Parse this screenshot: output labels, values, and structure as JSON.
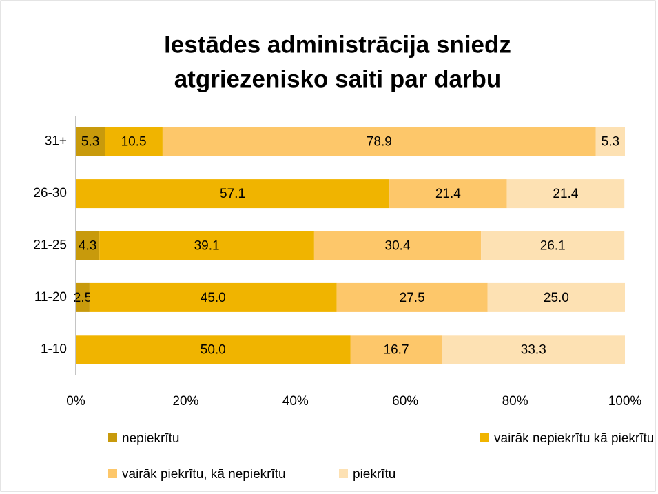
{
  "chart_data": {
    "type": "stacked-bar-horizontal",
    "title": [
      "Iestādes administrācija sniedz",
      "atgriezenisko saiti par darbu"
    ],
    "categories": [
      "31+",
      "26-30",
      "21-25",
      "11-20",
      "1-10"
    ],
    "series": [
      {
        "name": "nepiekrītu",
        "color": "#c89a0c",
        "values": [
          5.3,
          null,
          4.3,
          2.5,
          null
        ],
        "value_labels": [
          "5.3",
          null,
          "4.3",
          "2.5",
          null
        ]
      },
      {
        "name": "vairāk nepiekrītu kā piekrītu",
        "color": "#f0b400",
        "values": [
          10.5,
          57.1,
          39.1,
          45.0,
          50.0
        ],
        "value_labels": [
          "10.5",
          "57.1",
          "39.1",
          "45.0",
          "50.0"
        ]
      },
      {
        "name": "vairāk piekrītu, kā nepiekrītu",
        "color": "#fdc76a",
        "values": [
          78.9,
          21.4,
          30.4,
          27.5,
          16.7
        ],
        "value_labels": [
          "78.9",
          "21.4",
          "30.4",
          "27.5",
          "16.7"
        ]
      },
      {
        "name": "piekrītu",
        "color": "#fde1b3",
        "values": [
          5.3,
          21.4,
          26.1,
          25.0,
          33.3
        ],
        "value_labels": [
          "5.3",
          "21.4",
          "26.1",
          "25.0",
          "33.3"
        ]
      }
    ],
    "xlim": [
      0,
      100
    ],
    "xticks": [
      {
        "value": 0,
        "label": "0%"
      },
      {
        "value": 20,
        "label": "20%"
      },
      {
        "value": 40,
        "label": "40%"
      },
      {
        "value": 60,
        "label": "60%"
      },
      {
        "value": 80,
        "label": "80%"
      },
      {
        "value": 100,
        "label": "100%"
      }
    ],
    "legend": "bottom"
  }
}
